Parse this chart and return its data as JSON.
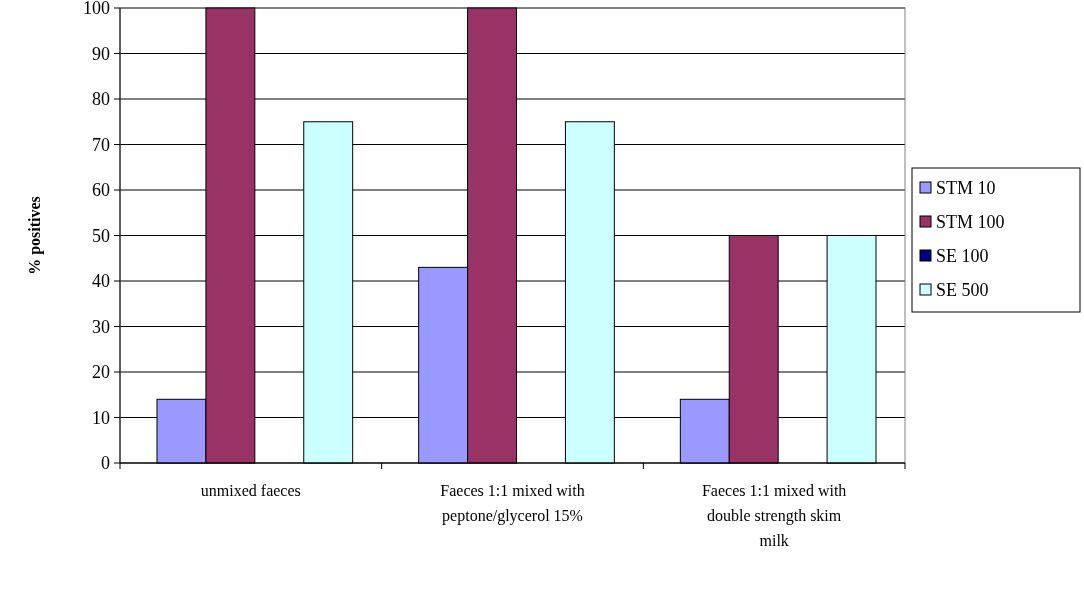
{
  "chart_data": {
    "type": "bar",
    "ylabel": "% positives",
    "categories": [
      "unmixed faeces",
      "Faeces 1:1 mixed with peptone/glycerol 15%",
      "Faeces 1:1 mixed with double strength skim milk"
    ],
    "series": [
      {
        "name": "STM 10",
        "color": "#9999ff",
        "values": [
          14,
          43,
          14
        ]
      },
      {
        "name": "STM 100",
        "color": "#993366",
        "values": [
          100,
          100,
          50
        ]
      },
      {
        "name": "SE 100",
        "color": "#000080",
        "values": [
          0,
          0,
          0
        ]
      },
      {
        "name": "SE 500",
        "color": "#ccffff",
        "values": [
          75,
          75,
          50
        ]
      }
    ],
    "ylim": [
      0,
      100
    ],
    "yticks": [
      0,
      10,
      20,
      30,
      40,
      50,
      60,
      70,
      80,
      90,
      100
    ],
    "grid": "y",
    "legend": "right"
  }
}
